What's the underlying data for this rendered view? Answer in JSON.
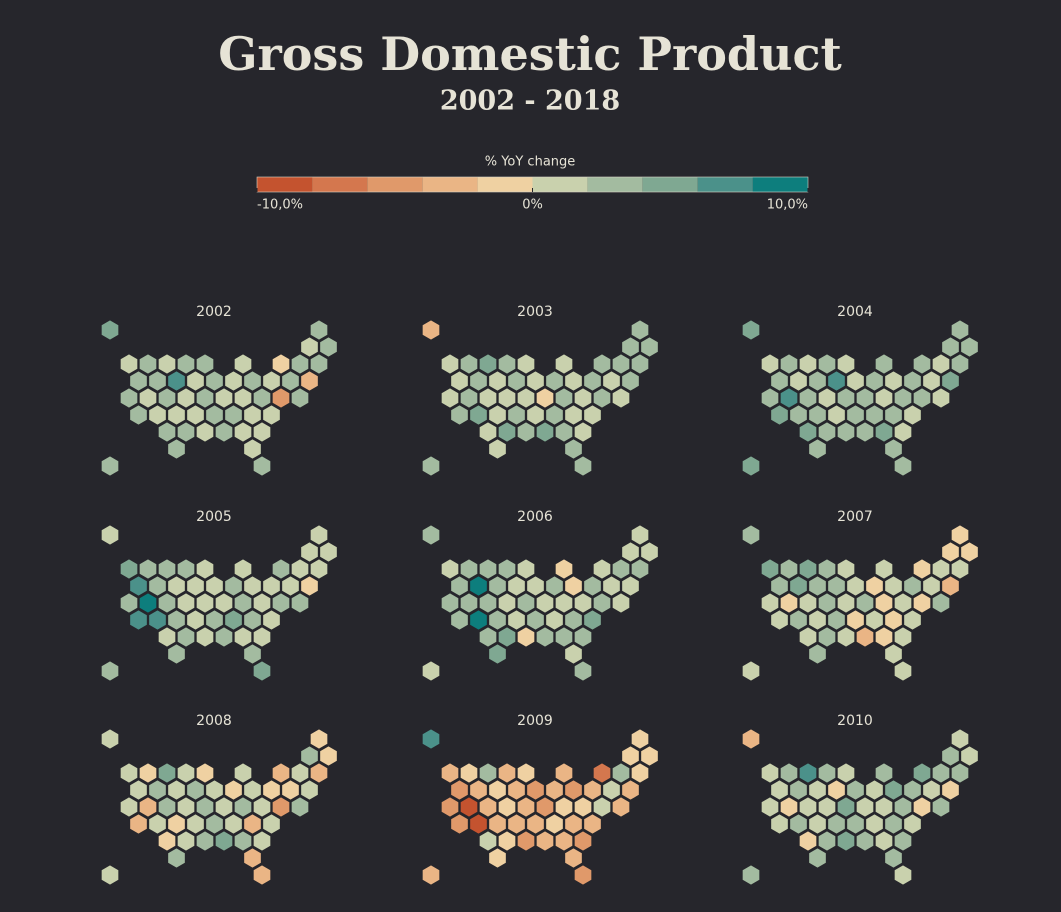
{
  "header": {
    "title": "Gross Domestic Product",
    "subtitle": "2002 - 2018"
  },
  "chart_data": {
    "type": "hexmap",
    "legend_title": "% YoY change",
    "colors": [
      "#c4532f",
      "#d4774e",
      "#e0996a",
      "#eab585",
      "#efd1a2",
      "#c9d1ad",
      "#a3bba0",
      "#7fa892",
      "#4b918a",
      "#0d7e7d"
    ],
    "scale_lim": [
      -10,
      10
    ],
    "scale_ticks": [
      {
        "value": -10,
        "label": "-10,0%"
      },
      {
        "value": 0,
        "label": "0%"
      },
      {
        "value": 10,
        "label": "10,0%"
      }
    ],
    "panels": [
      {
        "title": "2002",
        "values": [
          5,
          3,
          1,
          3,
          1,
          3,
          1,
          3,
          3,
          1,
          -1,
          3,
          3,
          3,
          3,
          7,
          1,
          3,
          1,
          3,
          1,
          3,
          -3,
          3,
          1,
          3,
          1,
          3,
          1,
          1,
          3,
          -5,
          3,
          3,
          1,
          1,
          1,
          3,
          3,
          1,
          1,
          3,
          3,
          1,
          3,
          1,
          1,
          3,
          1,
          3,
          3
        ]
      },
      {
        "title": "2003",
        "values": [
          -3,
          3,
          3,
          3,
          1,
          3,
          5,
          3,
          1,
          1,
          3,
          3,
          3,
          1,
          3,
          1,
          3,
          1,
          3,
          1,
          3,
          1,
          3,
          1,
          3,
          1,
          1,
          1,
          -1,
          3,
          1,
          3,
          1,
          3,
          5,
          1,
          3,
          1,
          3,
          1,
          1,
          1,
          5,
          3,
          5,
          3,
          1,
          1,
          3,
          3,
          3
        ]
      },
      {
        "title": "2004",
        "values": [
          5,
          3,
          3,
          3,
          1,
          3,
          1,
          3,
          1,
          3,
          3,
          1,
          3,
          3,
          1,
          3,
          7,
          1,
          3,
          1,
          3,
          1,
          5,
          3,
          7,
          3,
          1,
          3,
          3,
          1,
          3,
          3,
          1,
          5,
          3,
          3,
          1,
          3,
          3,
          3,
          1,
          5,
          3,
          3,
          3,
          5,
          1,
          3,
          3,
          5,
          3
        ]
      },
      {
        "title": "2005",
        "values": [
          1,
          1,
          1,
          1,
          5,
          3,
          3,
          3,
          1,
          1,
          3,
          1,
          1,
          7,
          3,
          1,
          1,
          1,
          3,
          1,
          1,
          1,
          -1,
          3,
          9,
          3,
          1,
          1,
          1,
          3,
          1,
          3,
          3,
          7,
          7,
          3,
          1,
          3,
          5,
          3,
          1,
          1,
          3,
          1,
          3,
          1,
          1,
          3,
          3,
          3,
          5
        ]
      },
      {
        "title": "2006",
        "values": [
          3,
          1,
          1,
          1,
          1,
          3,
          3,
          3,
          1,
          -1,
          1,
          3,
          3,
          3,
          9,
          3,
          1,
          1,
          3,
          -1,
          3,
          1,
          1,
          3,
          3,
          3,
          1,
          3,
          1,
          1,
          1,
          3,
          1,
          3,
          9,
          3,
          1,
          3,
          1,
          3,
          5,
          3,
          5,
          -1,
          3,
          3,
          3,
          5,
          1,
          1,
          3
        ]
      },
      {
        "title": "2007",
        "values": [
          3,
          -1,
          -1,
          -1,
          5,
          3,
          5,
          3,
          1,
          1,
          -1,
          1,
          1,
          3,
          5,
          3,
          3,
          1,
          -1,
          1,
          3,
          1,
          -3,
          1,
          -1,
          1,
          3,
          1,
          3,
          -1,
          1,
          -1,
          3,
          1,
          3,
          1,
          3,
          -1,
          1,
          -1,
          1,
          1,
          3,
          1,
          -3,
          -1,
          1,
          3,
          1,
          1,
          1
        ]
      },
      {
        "title": "2008",
        "values": [
          1,
          -1,
          3,
          -1,
          1,
          -1,
          5,
          1,
          -1,
          1,
          -3,
          1,
          -3,
          1,
          3,
          1,
          3,
          1,
          -1,
          1,
          -1,
          -1,
          1,
          1,
          -3,
          3,
          1,
          3,
          1,
          3,
          1,
          -5,
          3,
          -3,
          1,
          -1,
          1,
          3,
          1,
          -3,
          1,
          -1,
          1,
          3,
          5,
          3,
          1,
          3,
          -3,
          1,
          -3
        ]
      },
      {
        "title": "2009",
        "values": [
          7,
          -1,
          -1,
          -1,
          -3,
          -1,
          3,
          -3,
          -1,
          -3,
          -7,
          3,
          -1,
          -5,
          -3,
          -1,
          -3,
          -5,
          -3,
          -5,
          -3,
          1,
          -3,
          -5,
          -9,
          -3,
          -1,
          -3,
          -5,
          -1,
          -1,
          1,
          -3,
          -5,
          -9,
          -3,
          -3,
          -3,
          -1,
          -3,
          -3,
          1,
          -1,
          -5,
          -3,
          -3,
          -5,
          -1,
          -3,
          -3,
          -5
        ]
      },
      {
        "title": "2010",
        "values": [
          -3,
          1,
          3,
          1,
          1,
          3,
          7,
          3,
          1,
          3,
          5,
          3,
          3,
          1,
          3,
          1,
          -1,
          3,
          1,
          5,
          3,
          1,
          -1,
          1,
          -1,
          1,
          1,
          5,
          1,
          1,
          3,
          -1,
          3,
          1,
          3,
          1,
          3,
          3,
          1,
          3,
          1,
          -1,
          3,
          5,
          3,
          1,
          3,
          3,
          3,
          3,
          1
        ]
      }
    ]
  }
}
